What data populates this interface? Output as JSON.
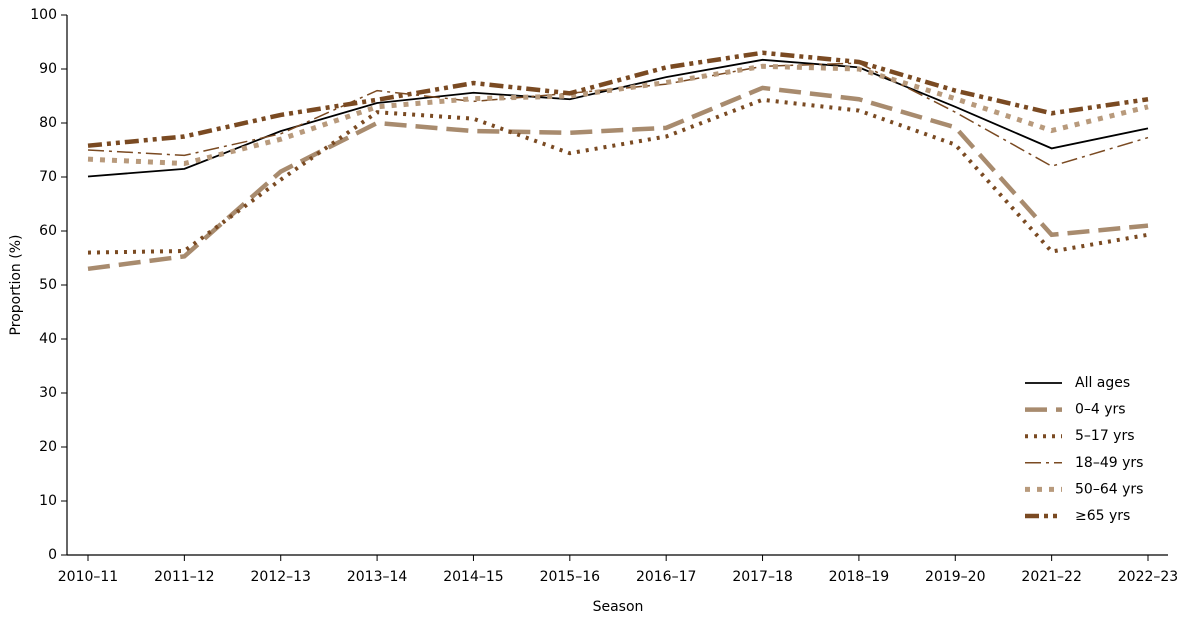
{
  "chart_data": {
    "type": "line",
    "x_label": "Season",
    "y_label": "Proportion (%)",
    "categories": [
      "2010–11",
      "2011–12",
      "2012–13",
      "2013–14",
      "2014–15",
      "2015–16",
      "2016–17",
      "2017–18",
      "2018–19",
      "2019–20",
      "2021–22",
      "2022–23"
    ],
    "series": [
      {
        "name": "All ages",
        "color": "#000000",
        "values": [
          70.1,
          71.5,
          78.5,
          83.7,
          85.6,
          84.4,
          88.5,
          91.7,
          90.3,
          83,
          75.3,
          79
        ]
      },
      {
        "name": "0–4 yrs",
        "color": "#a88b6e",
        "values": [
          53,
          55.3,
          71,
          80,
          78.5,
          78.2,
          79.1,
          86.5,
          84.4,
          79.2,
          59.3,
          61
        ]
      },
      {
        "name": "5–17 yrs",
        "color": "#7a4a22",
        "values": [
          56,
          56.3,
          69.5,
          82,
          80.8,
          74.4,
          77.5,
          84.3,
          82.3,
          76,
          56.2,
          59.3
        ]
      },
      {
        "name": "18–49 yrs",
        "color": "#7a4a22",
        "values": [
          75,
          74,
          78,
          86,
          84,
          85.5,
          87.2,
          90.5,
          91.1,
          82,
          72,
          77.3
        ]
      },
      {
        "name": "50–64 yrs",
        "color": "#b89a7c",
        "values": [
          73.3,
          72.5,
          77,
          83,
          84.5,
          85,
          87.5,
          90.5,
          90,
          84.5,
          78.6,
          83
        ]
      },
      {
        "name": "≥65 yrs",
        "color": "#7a4a22",
        "values": [
          75.8,
          77.5,
          81.5,
          84.3,
          87.4,
          85.5,
          90.3,
          93,
          91.3,
          86,
          81.8,
          84.4
        ]
      }
    ],
    "ylim": [
      0,
      100
    ],
    "yticks": [
      0,
      10,
      20,
      30,
      40,
      50,
      60,
      70,
      80,
      90,
      100
    ],
    "grid": false,
    "legend": "lower right"
  }
}
